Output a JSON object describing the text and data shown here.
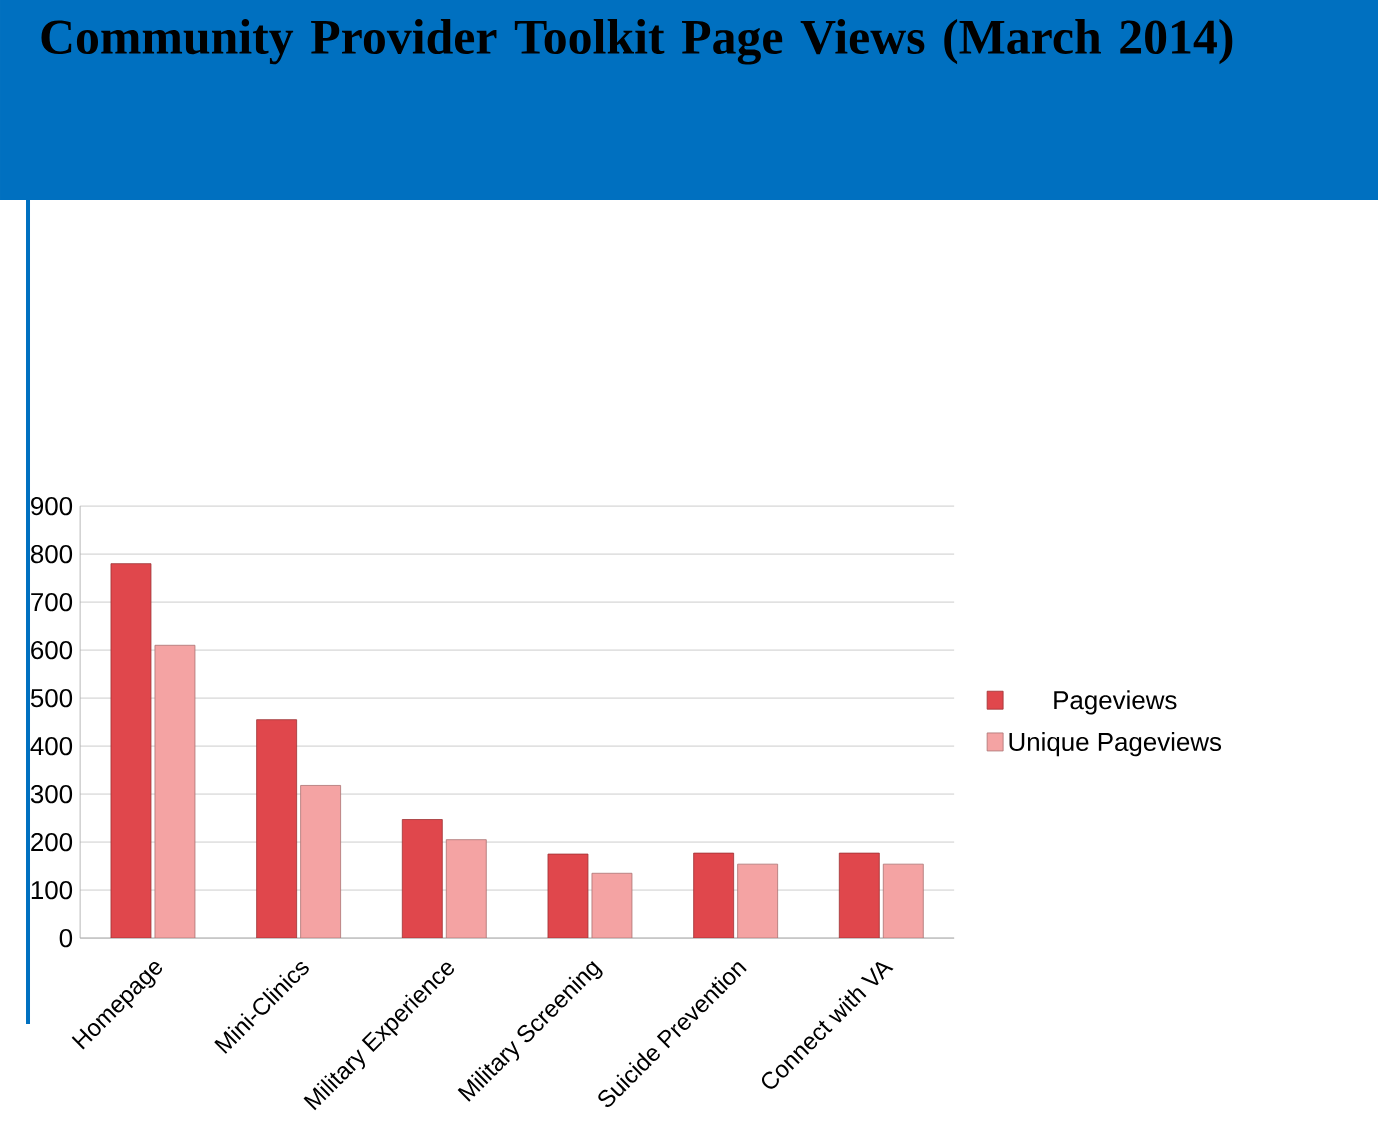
{
  "chart_data": {
    "type": "bar",
    "title": "Community Provider Toolkit Page Views (March 2014)",
    "categories": [
      "Homepage",
      "Mini-Clinics",
      "Military Experience",
      "Military Screening",
      "Suicide Prevention",
      "Connect with VA"
    ],
    "series": [
      {
        "name": "Pageviews",
        "color": "#e0474c",
        "values": [
          780,
          455,
          247,
          175,
          177,
          177
        ]
      },
      {
        "name": "Unique Pageviews",
        "color": "#f4a3a3",
        "values": [
          610,
          318,
          205,
          135,
          154,
          154
        ]
      }
    ],
    "ylim": [
      0,
      900
    ],
    "yticks": [
      0,
      100,
      200,
      300,
      400,
      500,
      600,
      700,
      800,
      900
    ],
    "grid": "y",
    "legend": "right"
  }
}
